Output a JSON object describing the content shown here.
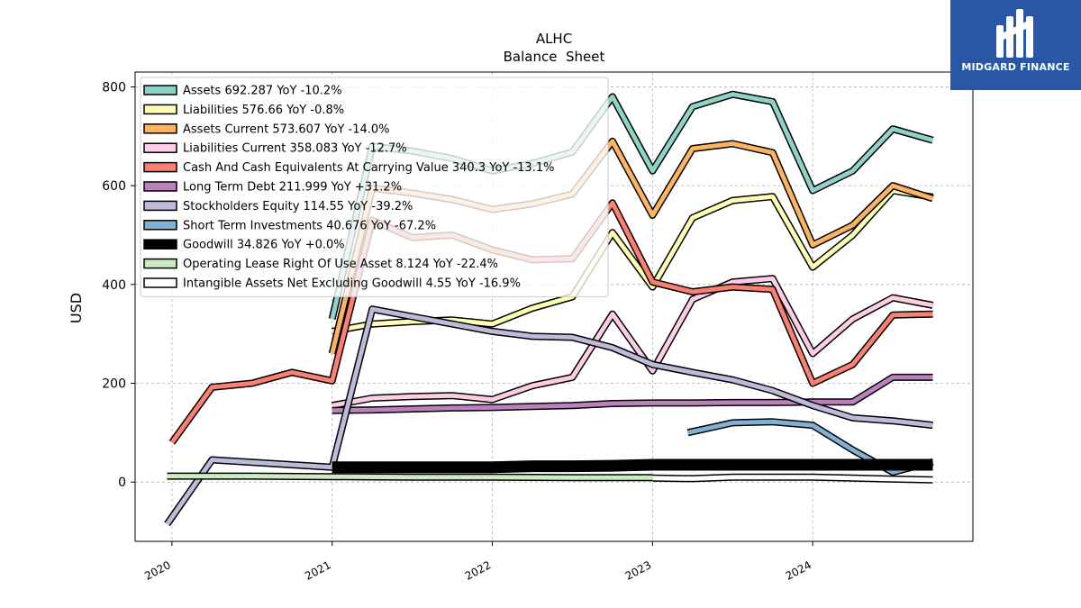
{
  "brand": {
    "name": "MIDGARD FINANCE",
    "bg": "#2757a6"
  },
  "chart_data": {
    "type": "line",
    "title": "ALHC",
    "subtitle": "Balance  Sheet",
    "xlabel": "",
    "ylabel": "USD",
    "xlim": [
      2019.77,
      2025.0
    ],
    "ylim": [
      -120,
      830
    ],
    "yticks": [
      0,
      200,
      400,
      600,
      800
    ],
    "xticks": [
      2020,
      2021,
      2022,
      2023,
      2024
    ],
    "grid": true,
    "legend_position": "top-left",
    "series": [
      {
        "name": "Assets  692.287 YoY -10.2%",
        "color": "#8dd3c7",
        "points": [
          [
            2021.0,
            330
          ],
          [
            2021.25,
            680
          ],
          [
            2021.5,
            670
          ],
          [
            2021.75,
            655
          ],
          [
            2022.0,
            630
          ],
          [
            2022.25,
            645
          ],
          [
            2022.5,
            668
          ],
          [
            2022.75,
            780
          ],
          [
            2023.0,
            630
          ],
          [
            2023.25,
            760
          ],
          [
            2023.5,
            785
          ],
          [
            2023.75,
            770
          ],
          [
            2024.0,
            590
          ],
          [
            2024.25,
            630
          ],
          [
            2024.5,
            715
          ],
          [
            2024.75,
            692
          ]
        ]
      },
      {
        "name": "Liabilities  576.66 YoY -0.8%",
        "color": "#ffffb3",
        "points": [
          [
            2021.0,
            305
          ],
          [
            2021.25,
            320
          ],
          [
            2021.5,
            325
          ],
          [
            2021.75,
            328
          ],
          [
            2022.0,
            320
          ],
          [
            2022.25,
            352
          ],
          [
            2022.5,
            375
          ],
          [
            2022.75,
            505
          ],
          [
            2023.0,
            395
          ],
          [
            2023.25,
            535
          ],
          [
            2023.5,
            570
          ],
          [
            2023.75,
            578
          ],
          [
            2024.0,
            435
          ],
          [
            2024.25,
            500
          ],
          [
            2024.5,
            590
          ],
          [
            2024.75,
            577
          ]
        ]
      },
      {
        "name": "Assets Current  573.607 YoY -14.0%",
        "color": "#fdb462",
        "points": [
          [
            2021.0,
            260
          ],
          [
            2021.25,
            595
          ],
          [
            2021.5,
            585
          ],
          [
            2021.75,
            572
          ],
          [
            2022.0,
            552
          ],
          [
            2022.25,
            563
          ],
          [
            2022.5,
            583
          ],
          [
            2022.75,
            690
          ],
          [
            2023.0,
            540
          ],
          [
            2023.25,
            675
          ],
          [
            2023.5,
            685
          ],
          [
            2023.75,
            667
          ],
          [
            2024.0,
            480
          ],
          [
            2024.25,
            520
          ],
          [
            2024.5,
            600
          ],
          [
            2024.75,
            574
          ]
        ]
      },
      {
        "name": "Liabilities Current  358.083 YoY -12.7%",
        "color": "#fccde5",
        "points": [
          [
            2021.0,
            155
          ],
          [
            2021.25,
            170
          ],
          [
            2021.5,
            173
          ],
          [
            2021.75,
            175
          ],
          [
            2022.0,
            167
          ],
          [
            2022.25,
            195
          ],
          [
            2022.5,
            212
          ],
          [
            2022.75,
            340
          ],
          [
            2023.0,
            225
          ],
          [
            2023.25,
            370
          ],
          [
            2023.5,
            405
          ],
          [
            2023.75,
            412
          ],
          [
            2024.0,
            260
          ],
          [
            2024.25,
            330
          ],
          [
            2024.5,
            373
          ],
          [
            2024.75,
            358
          ]
        ]
      },
      {
        "name": "Cash And Cash Equivalents At Carrying Value  340.3 YoY -13.1%",
        "color": "#fb8072",
        "points": [
          [
            2020.0,
            80
          ],
          [
            2020.25,
            192
          ],
          [
            2020.5,
            200
          ],
          [
            2020.75,
            222
          ],
          [
            2021.0,
            205
          ],
          [
            2021.25,
            530
          ],
          [
            2021.5,
            495
          ],
          [
            2021.75,
            500
          ],
          [
            2022.0,
            470
          ],
          [
            2022.25,
            450
          ],
          [
            2022.5,
            452
          ],
          [
            2022.75,
            565
          ],
          [
            2023.0,
            405
          ],
          [
            2023.25,
            385
          ],
          [
            2023.5,
            395
          ],
          [
            2023.75,
            390
          ],
          [
            2024.0,
            200
          ],
          [
            2024.25,
            238
          ],
          [
            2024.5,
            338
          ],
          [
            2024.75,
            340
          ]
        ]
      },
      {
        "name": "Long Term Debt  211.999 YoY +31.2%",
        "color": "#bc80bd",
        "points": [
          [
            2021.0,
            145
          ],
          [
            2021.25,
            146
          ],
          [
            2021.5,
            148
          ],
          [
            2021.75,
            150
          ],
          [
            2022.0,
            151
          ],
          [
            2022.25,
            153
          ],
          [
            2022.5,
            155
          ],
          [
            2022.75,
            159
          ],
          [
            2023.0,
            160
          ],
          [
            2023.25,
            160
          ],
          [
            2023.5,
            161
          ],
          [
            2023.75,
            161
          ],
          [
            2024.0,
            162
          ],
          [
            2024.25,
            162
          ],
          [
            2024.5,
            212
          ],
          [
            2024.75,
            212
          ]
        ]
      },
      {
        "name": "Stockholders Equity  114.55 YoY -39.2%",
        "color": "#bebada",
        "points": [
          [
            2019.97,
            -85
          ],
          [
            2020.25,
            45
          ],
          [
            2020.5,
            40
          ],
          [
            2020.75,
            35
          ],
          [
            2021.0,
            30
          ],
          [
            2021.25,
            350
          ],
          [
            2021.5,
            335
          ],
          [
            2021.75,
            320
          ],
          [
            2022.0,
            305
          ],
          [
            2022.25,
            295
          ],
          [
            2022.5,
            293
          ],
          [
            2022.75,
            272
          ],
          [
            2023.0,
            238
          ],
          [
            2023.25,
            222
          ],
          [
            2023.5,
            207
          ],
          [
            2023.75,
            185
          ],
          [
            2024.0,
            155
          ],
          [
            2024.25,
            130
          ],
          [
            2024.5,
            124
          ],
          [
            2024.75,
            115
          ]
        ]
      },
      {
        "name": "Short Term Investments  40.676 YoY -67.2%",
        "color": "#80b1d3",
        "points": [
          [
            2023.22,
            100
          ],
          [
            2023.5,
            120
          ],
          [
            2023.75,
            122
          ],
          [
            2024.0,
            115
          ],
          [
            2024.25,
            65
          ],
          [
            2024.5,
            20
          ],
          [
            2024.75,
            41
          ]
        ]
      },
      {
        "name": "Goodwill  34.826 YoY +0.0%",
        "color": "#000000",
        "points": [
          [
            2021.0,
            30
          ],
          [
            2021.25,
            30
          ],
          [
            2021.5,
            30
          ],
          [
            2021.75,
            30
          ],
          [
            2022.0,
            30
          ],
          [
            2022.25,
            32
          ],
          [
            2022.5,
            32
          ],
          [
            2022.75,
            33
          ],
          [
            2023.0,
            35
          ],
          [
            2023.25,
            35
          ],
          [
            2023.5,
            35
          ],
          [
            2023.75,
            35
          ],
          [
            2024.0,
            35
          ],
          [
            2024.25,
            35
          ],
          [
            2024.5,
            35
          ],
          [
            2024.75,
            35
          ]
        ]
      },
      {
        "name": "Operating Lease Right Of Use Asset  8.124 YoY -22.4%",
        "color": "#ccebc5",
        "points": [
          [
            2019.97,
            12
          ],
          [
            2020.5,
            12
          ],
          [
            2021.0,
            11
          ],
          [
            2021.5,
            10
          ],
          [
            2022.0,
            10
          ],
          [
            2022.5,
            9
          ],
          [
            2023.0,
            9
          ]
        ]
      },
      {
        "name": "Intangible Assets Net Excluding Goodwill  4.55 YoY -16.9%",
        "color": "#ffffff",
        "points": [
          [
            2023.0,
            8
          ],
          [
            2023.25,
            7
          ],
          [
            2023.5,
            10
          ],
          [
            2023.75,
            10
          ],
          [
            2024.0,
            10
          ],
          [
            2024.25,
            8
          ],
          [
            2024.5,
            6
          ],
          [
            2024.75,
            4.55
          ]
        ]
      }
    ]
  }
}
